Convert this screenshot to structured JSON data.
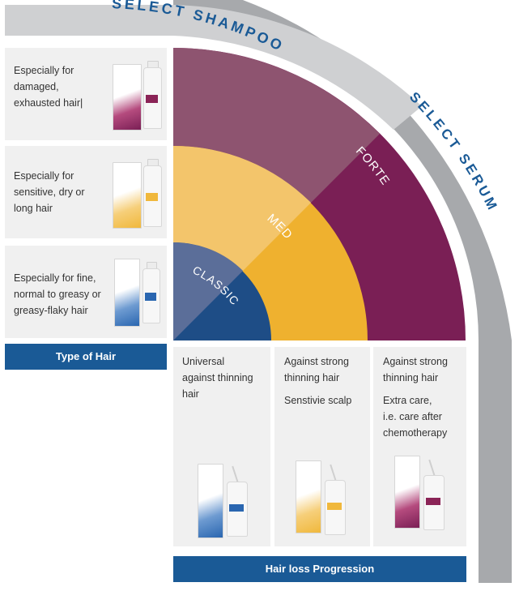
{
  "headers": {
    "select_shampoo": "SELECT SHAMPOO",
    "select_serum": "SELECT SERUM"
  },
  "arcs": [
    {
      "label": "FORTE",
      "color": "#7a1f55",
      "color_light": "#8e5470"
    },
    {
      "label": "MED",
      "color": "#efb12f",
      "color_light": "#f3c56b"
    },
    {
      "label": "CLASSIC",
      "color": "#1e4d86",
      "color_light": "#5b6e99"
    }
  ],
  "hair_types": [
    {
      "lines": [
        "Especially for",
        "damaged,",
        "exhausted hair|"
      ],
      "product_color": "#8b2457",
      "product_icon": "forte-shampoo-icon"
    },
    {
      "lines": [
        "Especially for",
        "sensitive, dry or",
        "long hair"
      ],
      "product_color": "#f0b83c",
      "product_icon": "med-shampoo-icon"
    },
    {
      "lines": [
        "Especially for fine,",
        "normal to greasy or",
        "greasy-flaky hair"
      ],
      "product_color": "#2a66b0",
      "product_icon": "classic-shampoo-icon"
    }
  ],
  "type_of_hair_label": "Type of Hair",
  "progressions": [
    {
      "lines": [
        "Universal",
        "against thinning",
        "hair"
      ],
      "product_color": "#2a66b0",
      "product_icon": "classic-serum-icon"
    },
    {
      "lines": [
        "Against strong",
        "thinning hair",
        "",
        "Senstivie scalp"
      ],
      "product_color": "#f0b83c",
      "product_icon": "med-serum-icon"
    },
    {
      "lines": [
        "Against strong",
        "thinning hair",
        "",
        "Extra care,",
        "i.e. care after",
        "chemotherapy"
      ],
      "product_color": "#8b2457",
      "product_icon": "forte-serum-icon"
    }
  ],
  "progression_label": "Hair loss Progression"
}
